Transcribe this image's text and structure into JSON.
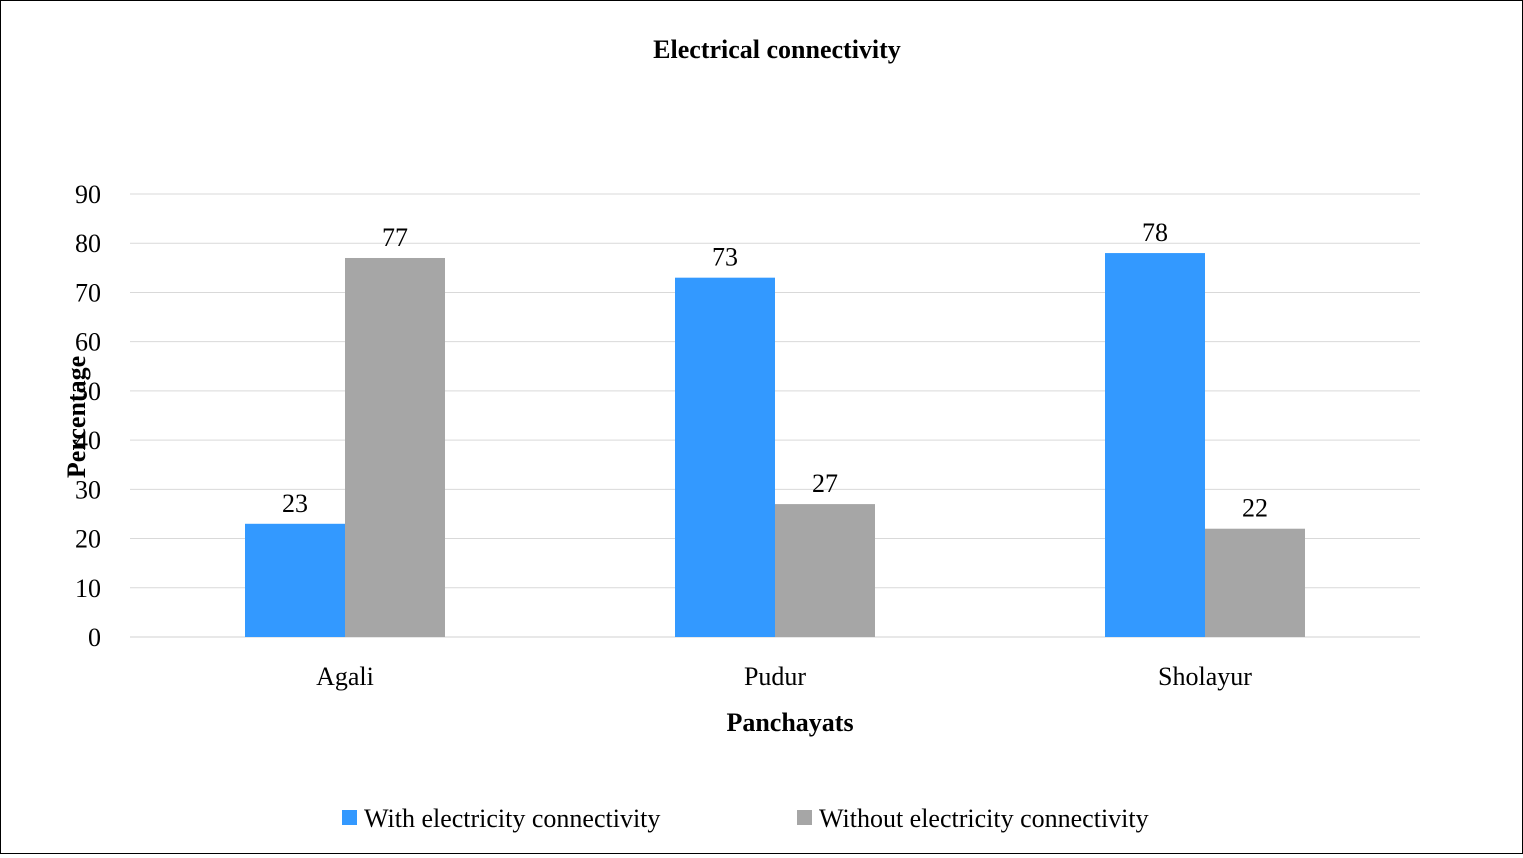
{
  "chart_data": {
    "type": "bar",
    "title": "Electrical connectivity",
    "xlabel": "Panchayats",
    "ylabel": "Percentage",
    "categories": [
      "Agali",
      "Pudur",
      "Sholayur"
    ],
    "series": [
      {
        "name": "With electricity connectivity",
        "values": [
          23,
          73,
          78
        ],
        "color": "#3399ff"
      },
      {
        "name": "Without electricity connectivity",
        "values": [
          77,
          27,
          22
        ],
        "color": "#a6a6a6"
      }
    ],
    "ylim": [
      0,
      90
    ],
    "yticks": [
      0,
      10,
      20,
      30,
      40,
      50,
      60,
      70,
      80,
      90
    ],
    "grid": true,
    "legend_position": "bottom"
  }
}
